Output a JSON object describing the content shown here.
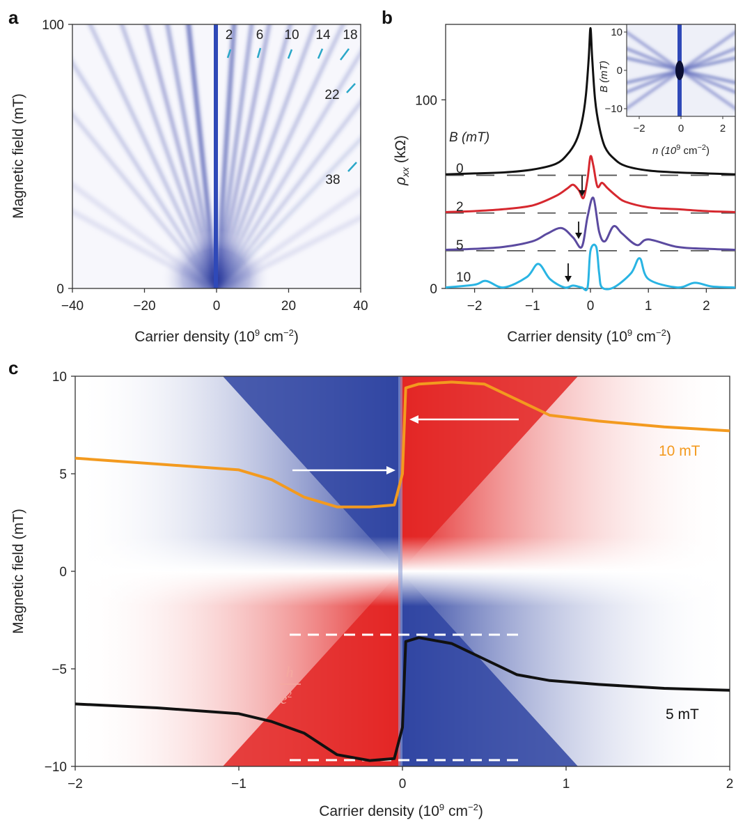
{
  "panel_a": {
    "letter": "a",
    "xlabel": "Carrier density (10",
    "xlabel_exp": "9",
    "xlabel_unit": " cm",
    "xlabel_unit_exp": "−2",
    "xlabel_close": ")",
    "ylabel": "Magnetic field (mT)",
    "landau_labels": [
      "2",
      "6",
      "10",
      "14",
      "18",
      "22",
      "38"
    ],
    "marker_color": "#2aa7c8"
  },
  "panel_b": {
    "letter": "b",
    "ylabel": "ρ",
    "ylabel_sub": "xx",
    "ylabel_unit": " (kΩ)",
    "xlabel": "Carrier density (10",
    "xlabel_exp": "9",
    "xlabel_unit": " cm",
    "xlabel_unit_exp": "−2",
    "xlabel_close": ")",
    "legend_title": "B (mT)",
    "curve_labels": [
      "0",
      "2",
      "5",
      "10"
    ],
    "curve_colors": [
      "#111111",
      "#d6282f",
      "#5b4aa0",
      "#29b4e3"
    ],
    "inset": {
      "xlabel": "n (10",
      "xlabel_exp": "9",
      "xlabel_unit": " cm",
      "xlabel_unit_exp": "−2",
      "xlabel_close": ")",
      "ylabel": "B (mT)"
    }
  },
  "panel_c": {
    "letter": "c",
    "xlabel": "Carrier density (10",
    "xlabel_exp": "9",
    "xlabel_unit": " cm",
    "xlabel_unit_exp": "−2",
    "xlabel_close": ")",
    "ylabel": "Magnetic field (mT)",
    "fraction_num": "h",
    "fraction_den": "e",
    "fraction_den_exp": "2",
    "label_10mT": "10 mT",
    "label_5mT": "5 mT",
    "color_10mT": "#f39a1f",
    "color_5mT": "#111111"
  },
  "chart_data": [
    {
      "type": "heatmap",
      "title": "",
      "xlabel": "Carrier density (10^9 cm^-2)",
      "ylabel": "Magnetic field (mT)",
      "xlim": [
        -40,
        40
      ],
      "ylim": [
        0,
        100
      ],
      "x_ticks": [
        "−40",
        "−20",
        "0",
        "20",
        "40"
      ],
      "y_ticks": [
        "0",
        "100"
      ],
      "landau_filling_factors": [
        2,
        6,
        10,
        14,
        18,
        22,
        38
      ]
    },
    {
      "type": "line",
      "xlabel": "Carrier density (10^9 cm^-2)",
      "ylabel": "rho_xx (kOhm)",
      "xlim": [
        -2.5,
        2.5
      ],
      "ylim": [
        0,
        140
      ],
      "x_ticks": [
        "−2",
        "−1",
        "0",
        "1",
        "2"
      ],
      "y_ticks": [
        "0",
        "100"
      ],
      "series": [
        {
          "name": "0",
          "offset": 60,
          "x": [
            -2.5,
            -2,
            -1.5,
            -1,
            -0.6,
            -0.4,
            -0.25,
            -0.15,
            -0.08,
            -0.03,
            0,
            0.03,
            0.08,
            0.15,
            0.25,
            0.4,
            0.6,
            1,
            1.5,
            2,
            2.5
          ],
          "y": [
            0.5,
            1,
            1.5,
            3,
            6,
            11,
            18,
            28,
            42,
            62,
            78,
            62,
            40,
            26,
            15,
            9,
            5,
            2.5,
            1.5,
            1,
            0.5
          ]
        },
        {
          "name": "2",
          "offset": 40,
          "x": [
            -2.5,
            -2,
            -1.5,
            -1,
            -0.6,
            -0.4,
            -0.3,
            -0.2,
            -0.12,
            -0.05,
            0,
            0.05,
            0.12,
            0.2,
            0.3,
            0.45,
            0.6,
            1,
            1.5,
            2,
            2.5
          ],
          "y": [
            0.5,
            1,
            2,
            4,
            9,
            13,
            15,
            12,
            8,
            18,
            30,
            25,
            14,
            16,
            13,
            9,
            6,
            3,
            2,
            1,
            0.5
          ]
        },
        {
          "name": "5",
          "offset": 20,
          "x": [
            -2.5,
            -2,
            -1.5,
            -1,
            -0.75,
            -0.5,
            -0.3,
            -0.15,
            -0.05,
            0.05,
            0.15,
            0.25,
            0.4,
            0.55,
            0.8,
            1,
            1.5,
            2,
            2.5
          ],
          "y": [
            0.5,
            1,
            2,
            5,
            9,
            12,
            7,
            2,
            18,
            28,
            10,
            5,
            13,
            9,
            3,
            6,
            2,
            1,
            0.5
          ]
        },
        {
          "name": "10",
          "offset": 0,
          "x": [
            -2.5,
            -2,
            -1.8,
            -1.5,
            -1.1,
            -0.9,
            -0.7,
            -0.45,
            -0.3,
            -0.15,
            -0.05,
            0,
            0.1,
            0.15,
            0.2,
            0.4,
            0.7,
            0.85,
            1,
            1.5,
            1.8,
            2.1,
            2.5
          ],
          "y": [
            0.5,
            2,
            4,
            0.5,
            6,
            13,
            5,
            0.5,
            1.5,
            0.5,
            0.5,
            20,
            22,
            8,
            0.5,
            0.5,
            8,
            16,
            5,
            0.5,
            3,
            1,
            0.5
          ]
        }
      ]
    },
    {
      "type": "heatmap",
      "xlabel": "Carrier density (10^9 cm^-2)",
      "ylabel": "Magnetic field (mT)",
      "xlim": [
        -2,
        2
      ],
      "ylim": [
        -10,
        10
      ],
      "x_ticks": [
        "−2",
        "−1",
        "0",
        "1",
        "2"
      ],
      "y_ticks": [
        "10",
        "5",
        "0",
        "−5",
        "−10"
      ],
      "series": [
        {
          "name": "10 mT",
          "x": [
            -2,
            -1.5,
            -1,
            -0.8,
            -0.6,
            -0.4,
            -0.2,
            -0.05,
            0,
            0.02,
            0.1,
            0.3,
            0.5,
            0.7,
            0.9,
            1.2,
            1.6,
            2
          ],
          "y": [
            5.8,
            5.5,
            5.2,
            4.7,
            3.8,
            3.3,
            3.3,
            3.4,
            5,
            9.4,
            9.6,
            9.7,
            9.6,
            8.8,
            8,
            7.7,
            7.4,
            7.2
          ]
        },
        {
          "name": "5 mT",
          "x": [
            -2,
            -1.5,
            -1,
            -0.8,
            -0.6,
            -0.4,
            -0.2,
            -0.05,
            0,
            0.02,
            0.1,
            0.3,
            0.5,
            0.7,
            0.9,
            1.2,
            1.6,
            2
          ],
          "y": [
            -6.8,
            -7,
            -7.3,
            -7.7,
            -8.3,
            -9.4,
            -9.7,
            -9.6,
            -8,
            -3.6,
            -3.4,
            -3.7,
            -4.5,
            -5.3,
            -5.6,
            -5.8,
            -6,
            -6.1
          ]
        }
      ]
    }
  ]
}
